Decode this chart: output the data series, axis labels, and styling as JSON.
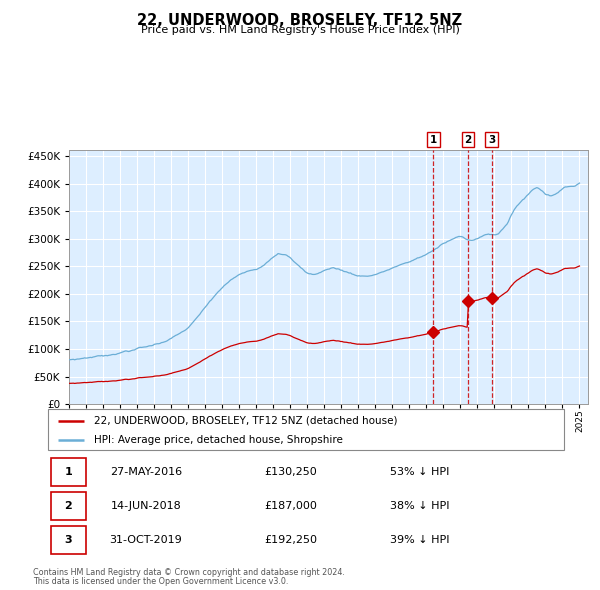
{
  "title": "22, UNDERWOOD, BROSELEY, TF12 5NZ",
  "subtitle": "Price paid vs. HM Land Registry's House Price Index (HPI)",
  "legend_line1": "22, UNDERWOOD, BROSELEY, TF12 5NZ (detached house)",
  "legend_line2": "HPI: Average price, detached house, Shropshire",
  "footer1": "Contains HM Land Registry data © Crown copyright and database right 2024.",
  "footer2": "This data is licensed under the Open Government Licence v3.0.",
  "purchases": [
    {
      "num": 1,
      "date": "27-MAY-2016",
      "price": 130250,
      "pct": "53%",
      "dir": "↓"
    },
    {
      "num": 2,
      "date": "14-JUN-2018",
      "price": 187000,
      "pct": "38%",
      "dir": "↓"
    },
    {
      "num": 3,
      "date": "31-OCT-2019",
      "price": 192250,
      "pct": "39%",
      "dir": "↓"
    }
  ],
  "purchase_years": [
    2016.41,
    2018.45,
    2019.83
  ],
  "hpi_color": "#6baed6",
  "property_color": "#cc0000",
  "plot_bg_color": "#ddeeff",
  "grid_color": "#ffffff",
  "dashed_line_color": "#cc0000",
  "ylim": [
    0,
    460000
  ],
  "xlim_start": 1995.0,
  "xlim_end": 2025.5,
  "ytick_vals": [
    0,
    50000,
    100000,
    150000,
    200000,
    250000,
    300000,
    350000,
    400000,
    450000
  ],
  "blue_ctrl": [
    [
      1995.0,
      80000
    ],
    [
      1996.0,
      84000
    ],
    [
      1997.0,
      88000
    ],
    [
      1998.0,
      93000
    ],
    [
      1999.0,
      100000
    ],
    [
      2000.0,
      108000
    ],
    [
      2001.0,
      118000
    ],
    [
      2002.0,
      138000
    ],
    [
      2002.5,
      155000
    ],
    [
      2003.0,
      175000
    ],
    [
      2003.5,
      195000
    ],
    [
      2004.0,
      210000
    ],
    [
      2004.5,
      225000
    ],
    [
      2005.0,
      235000
    ],
    [
      2005.5,
      240000
    ],
    [
      2006.0,
      245000
    ],
    [
      2006.5,
      255000
    ],
    [
      2007.0,
      268000
    ],
    [
      2007.3,
      275000
    ],
    [
      2007.8,
      270000
    ],
    [
      2008.2,
      258000
    ],
    [
      2008.7,
      245000
    ],
    [
      2009.0,
      238000
    ],
    [
      2009.5,
      235000
    ],
    [
      2010.0,
      242000
    ],
    [
      2010.5,
      248000
    ],
    [
      2011.0,
      243000
    ],
    [
      2011.5,
      238000
    ],
    [
      2012.0,
      233000
    ],
    [
      2012.5,
      232000
    ],
    [
      2013.0,
      235000
    ],
    [
      2013.5,
      240000
    ],
    [
      2014.0,
      247000
    ],
    [
      2014.5,
      252000
    ],
    [
      2015.0,
      258000
    ],
    [
      2015.5,
      265000
    ],
    [
      2016.0,
      272000
    ],
    [
      2016.5,
      280000
    ],
    [
      2017.0,
      291000
    ],
    [
      2017.5,
      298000
    ],
    [
      2017.8,
      302000
    ],
    [
      2018.0,
      305000
    ],
    [
      2018.3,
      302000
    ],
    [
      2018.6,
      298000
    ],
    [
      2019.0,
      300000
    ],
    [
      2019.3,
      305000
    ],
    [
      2019.6,
      307000
    ],
    [
      2019.9,
      306000
    ],
    [
      2020.2,
      308000
    ],
    [
      2020.5,
      318000
    ],
    [
      2020.8,
      330000
    ],
    [
      2021.0,
      345000
    ],
    [
      2021.3,
      358000
    ],
    [
      2021.6,
      368000
    ],
    [
      2021.9,
      378000
    ],
    [
      2022.2,
      388000
    ],
    [
      2022.5,
      393000
    ],
    [
      2022.8,
      388000
    ],
    [
      2023.0,
      382000
    ],
    [
      2023.3,
      378000
    ],
    [
      2023.6,
      382000
    ],
    [
      2023.9,
      388000
    ],
    [
      2024.2,
      392000
    ],
    [
      2024.5,
      395000
    ],
    [
      2024.8,
      398000
    ],
    [
      2025.0,
      402000
    ]
  ]
}
